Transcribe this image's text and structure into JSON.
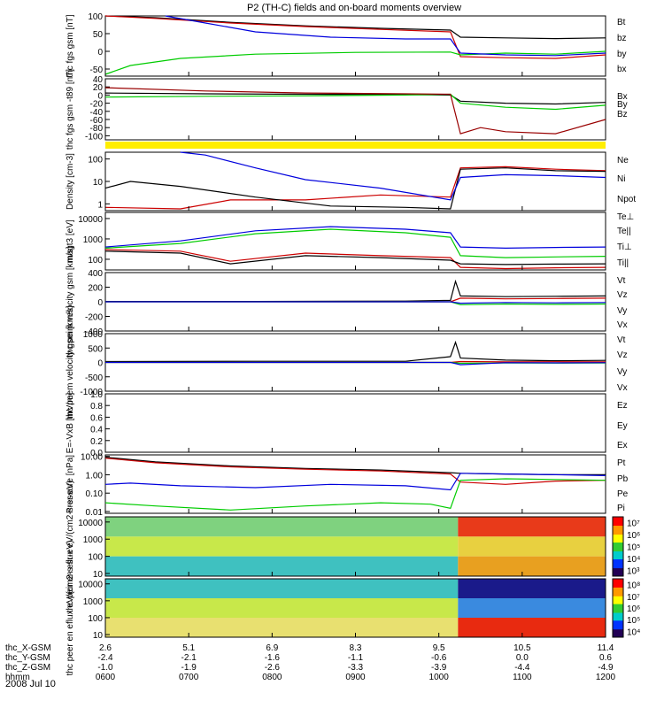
{
  "title": "P2 (TH-C) fields and on-board moments overview",
  "date_label": "2008 Jul 10",
  "chart_data": [
    {
      "type": "line",
      "ylabel": "thc fgs gsm [nT]",
      "ylim": [
        -70,
        100
      ],
      "yticks": [
        "100",
        "50",
        "0",
        "-50"
      ],
      "yvals": [
        100,
        50,
        0,
        -50
      ],
      "scale": "linear",
      "series": [
        {
          "name": "Bt",
          "color": "#000000",
          "x": [
            0,
            0.1,
            0.25,
            0.4,
            0.55,
            0.69,
            0.71,
            0.8,
            0.9,
            1.0
          ],
          "y": [
            100,
            95,
            82,
            72,
            65,
            60,
            40,
            38,
            36,
            38
          ]
        },
        {
          "name": "bz",
          "color": "#cc0000",
          "x": [
            0,
            0.1,
            0.25,
            0.4,
            0.55,
            0.69,
            0.71,
            0.8,
            0.9,
            1.0
          ],
          "y": [
            100,
            93,
            80,
            70,
            62,
            55,
            -15,
            -18,
            -20,
            -10
          ]
        },
        {
          "name": "by",
          "color": "#00cc00",
          "x": [
            0,
            0.05,
            0.15,
            0.3,
            0.5,
            0.69,
            0.71,
            0.8,
            0.9,
            1.0
          ],
          "y": [
            -65,
            -40,
            -20,
            -8,
            -3,
            -2,
            -10,
            -5,
            -8,
            0
          ]
        },
        {
          "name": "bx",
          "color": "#0000dd",
          "x": [
            0.12,
            0.2,
            0.3,
            0.45,
            0.6,
            0.69,
            0.71,
            0.8,
            0.9,
            1.0
          ],
          "y": [
            100,
            80,
            55,
            40,
            35,
            35,
            -5,
            -10,
            -12,
            -5
          ]
        }
      ]
    },
    {
      "type": "line",
      "ylabel": "thc fgs gsm -t89 [nT]",
      "ylim": [
        -110,
        40
      ],
      "yticks": [
        "40",
        "20",
        "0",
        "-20",
        "-40",
        "-60",
        "-80",
        "-100"
      ],
      "yvals": [
        40,
        20,
        0,
        -20,
        -40,
        -60,
        -80,
        -100
      ],
      "scale": "linear",
      "series": [
        {
          "name": "Bx",
          "color": "#000000",
          "x": [
            0,
            0.2,
            0.4,
            0.6,
            0.69,
            0.71,
            0.8,
            0.9,
            1.0
          ],
          "y": [
            5,
            3,
            2,
            1,
            0,
            -15,
            -20,
            -22,
            -18
          ]
        },
        {
          "name": "By",
          "color": "#00cc00",
          "x": [
            0,
            0.2,
            0.4,
            0.6,
            0.69,
            0.71,
            0.8,
            0.9,
            1.0
          ],
          "y": [
            -5,
            -3,
            -2,
            0,
            2,
            -20,
            -30,
            -35,
            -25
          ]
        },
        {
          "name": "Bz",
          "color": "#990000",
          "x": [
            0,
            0.2,
            0.4,
            0.6,
            0.69,
            0.71,
            0.75,
            0.8,
            0.9,
            1.0
          ],
          "y": [
            18,
            10,
            5,
            3,
            2,
            -95,
            -80,
            -90,
            -95,
            -60
          ]
        }
      ]
    },
    {
      "type": "line",
      "ylabel": "Density [cm-3]",
      "ylim": [
        0.5,
        200
      ],
      "yticks": [
        "100",
        "10",
        "1"
      ],
      "yvals": [
        100,
        10,
        1
      ],
      "scale": "log",
      "series": [
        {
          "name": "Ne",
          "color": "#cc0000",
          "x": [
            0,
            0.15,
            0.25,
            0.4,
            0.55,
            0.69,
            0.71,
            0.8,
            0.9,
            1.0
          ],
          "y": [
            0.7,
            0.6,
            1.5,
            1.5,
            2.5,
            2.0,
            40,
            45,
            35,
            30
          ]
        },
        {
          "name": "Ni",
          "color": "#000000",
          "x": [
            0,
            0.05,
            0.15,
            0.3,
            0.45,
            0.6,
            0.69,
            0.71,
            0.8,
            0.9,
            1.0
          ],
          "y": [
            5,
            10,
            6,
            2,
            0.8,
            0.7,
            0.6,
            35,
            40,
            30,
            28
          ]
        },
        {
          "name": "Npot",
          "color": "#0000dd",
          "x": [
            0.15,
            0.2,
            0.3,
            0.4,
            0.55,
            0.69,
            0.71,
            0.8,
            0.9,
            1.0
          ],
          "y": [
            200,
            150,
            40,
            12,
            5,
            1.5,
            15,
            20,
            18,
            15
          ]
        }
      ]
    },
    {
      "type": "line",
      "ylabel": "magt3 [eV]",
      "ylim": [
        30,
        20000
      ],
      "yticks": [
        "10000",
        "1000",
        "100"
      ],
      "yvals": [
        10000,
        1000,
        100
      ],
      "scale": "log",
      "series": [
        {
          "name": "Te⊥",
          "color": "#cc0000",
          "x": [
            0,
            0.15,
            0.25,
            0.4,
            0.55,
            0.69,
            0.71,
            0.8,
            0.9,
            1.0
          ],
          "y": [
            300,
            250,
            80,
            200,
            150,
            120,
            40,
            35,
            38,
            40
          ]
        },
        {
          "name": "Te||",
          "color": "#000000",
          "x": [
            0,
            0.15,
            0.25,
            0.4,
            0.55,
            0.69,
            0.71,
            0.8,
            0.9,
            1.0
          ],
          "y": [
            250,
            200,
            60,
            150,
            120,
            90,
            60,
            55,
            58,
            60
          ]
        },
        {
          "name": "Ti⊥",
          "color": "#0000dd",
          "x": [
            0,
            0.15,
            0.3,
            0.45,
            0.6,
            0.69,
            0.71,
            0.8,
            0.9,
            1.0
          ],
          "y": [
            400,
            800,
            2500,
            4000,
            3000,
            2000,
            400,
            350,
            380,
            400
          ]
        },
        {
          "name": "Ti||",
          "color": "#00cc00",
          "x": [
            0,
            0.15,
            0.3,
            0.45,
            0.6,
            0.69,
            0.71,
            0.8,
            0.9,
            1.0
          ],
          "y": [
            350,
            600,
            1800,
            3000,
            2000,
            1200,
            150,
            120,
            130,
            140
          ]
        }
      ]
    },
    {
      "type": "line",
      "ylabel": "thc peim velocity gsm [km/s]",
      "ylim": [
        -400,
        400
      ],
      "yticks": [
        "400",
        "200",
        "0",
        "-200",
        "-400"
      ],
      "yvals": [
        400,
        200,
        0,
        -200,
        -400
      ],
      "scale": "linear",
      "series": [
        {
          "name": "Vt",
          "color": "#000000",
          "x": [
            0,
            0.3,
            0.6,
            0.69,
            0.7,
            0.71,
            0.8,
            0.9,
            1.0
          ],
          "y": [
            5,
            5,
            10,
            20,
            280,
            80,
            70,
            75,
            80
          ]
        },
        {
          "name": "Vz",
          "color": "#cc0000",
          "x": [
            0,
            0.3,
            0.6,
            0.69,
            0.71,
            0.8,
            0.9,
            1.0
          ],
          "y": [
            0,
            0,
            0,
            0,
            50,
            40,
            45,
            50
          ]
        },
        {
          "name": "Vy",
          "color": "#00cc00",
          "x": [
            0,
            0.3,
            0.6,
            0.69,
            0.71,
            0.8,
            0.9,
            1.0
          ],
          "y": [
            0,
            0,
            0,
            0,
            -40,
            -30,
            -35,
            -30
          ]
        },
        {
          "name": "Vx",
          "color": "#0000dd",
          "x": [
            0,
            0.3,
            0.6,
            0.69,
            0.71,
            0.8,
            0.9,
            1.0
          ],
          "y": [
            0,
            0,
            0,
            0,
            -20,
            -10,
            -15,
            -10
          ]
        }
      ]
    },
    {
      "type": "line",
      "ylabel": "thc peem velocity gsm [km/s]",
      "ylim": [
        -1000,
        1000
      ],
      "yticks": [
        "1000",
        "500",
        "0",
        "-500",
        "-1000"
      ],
      "yvals": [
        1000,
        500,
        0,
        -500,
        -1000
      ],
      "scale": "linear",
      "series": [
        {
          "name": "Vt",
          "color": "#000000",
          "x": [
            0,
            0.3,
            0.6,
            0.69,
            0.7,
            0.71,
            0.8,
            0.9,
            1.0
          ],
          "y": [
            30,
            40,
            40,
            200,
            700,
            150,
            80,
            60,
            70
          ]
        },
        {
          "name": "Vz",
          "color": "#cc0000",
          "x": [
            0,
            0.3,
            0.6,
            0.69,
            0.71,
            0.8,
            0.9,
            1.0
          ],
          "y": [
            0,
            0,
            0,
            0,
            30,
            20,
            25,
            20
          ]
        },
        {
          "name": "Vy",
          "color": "#00cc00",
          "x": [
            0,
            0.3,
            0.6,
            0.69,
            0.71,
            0.8,
            0.9,
            1.0
          ],
          "y": [
            0,
            0,
            0,
            0,
            -30,
            -20,
            -25,
            -20
          ]
        },
        {
          "name": "Vx",
          "color": "#0000dd",
          "x": [
            0,
            0.3,
            0.6,
            0.69,
            0.71,
            0.8,
            0.9,
            1.0
          ],
          "y": [
            0,
            0,
            0,
            0,
            -80,
            -10,
            -15,
            -10
          ]
        }
      ]
    },
    {
      "type": "line",
      "ylabel": "E=-VxB [mV/m]",
      "ylim": [
        0,
        1
      ],
      "yticks": [
        "1.0",
        "0.8",
        "0.6",
        "0.4",
        "0.2",
        "0.0"
      ],
      "yvals": [
        1.0,
        0.8,
        0.6,
        0.4,
        0.2,
        0.0
      ],
      "scale": "linear",
      "series": [
        {
          "name": "Ez",
          "color": "#cc0000",
          "x": [],
          "y": []
        },
        {
          "name": "Ey",
          "color": "#00cc00",
          "x": [],
          "y": []
        },
        {
          "name": "Ex",
          "color": "#0000dd",
          "x": [],
          "y": []
        }
      ]
    },
    {
      "type": "line",
      "ylabel": "Pressure [nPa]",
      "ylim": [
        0.008,
        12
      ],
      "yticks": [
        "10.00",
        "1.00",
        "0.10",
        "0.01"
      ],
      "yvals": [
        10,
        1,
        0.1,
        0.01
      ],
      "scale": "log",
      "series": [
        {
          "name": "Pt",
          "color": "#000000",
          "x": [
            0,
            0.1,
            0.25,
            0.4,
            0.55,
            0.69,
            0.71,
            0.8,
            0.9,
            1.0
          ],
          "y": [
            9,
            5,
            3,
            2.2,
            1.8,
            1.3,
            1.2,
            1.1,
            1.0,
            1.0
          ]
        },
        {
          "name": "Pb",
          "color": "#cc0000",
          "x": [
            0,
            0.1,
            0.25,
            0.4,
            0.55,
            0.69,
            0.71,
            0.8,
            0.9,
            1.0
          ],
          "y": [
            8,
            4.5,
            2.7,
            2.0,
            1.6,
            1.1,
            0.4,
            0.3,
            0.45,
            0.5
          ]
        },
        {
          "name": "Pe",
          "color": "#00cc00",
          "x": [
            0,
            0.1,
            0.25,
            0.4,
            0.55,
            0.65,
            0.69,
            0.71,
            0.8,
            0.9,
            1.0
          ],
          "y": [
            0.03,
            0.02,
            0.012,
            0.02,
            0.03,
            0.025,
            0.015,
            0.5,
            0.6,
            0.55,
            0.5
          ]
        },
        {
          "name": "Pi",
          "color": "#0000dd",
          "x": [
            0,
            0.05,
            0.15,
            0.3,
            0.45,
            0.6,
            0.69,
            0.71,
            0.8,
            0.9,
            1.0
          ],
          "y": [
            0.3,
            0.35,
            0.25,
            0.2,
            0.3,
            0.25,
            0.15,
            1.2,
            1.1,
            1.0,
            0.9
          ]
        }
      ]
    },
    {
      "type": "heatmap",
      "ylabel": "thc peir en eflux eV/(cm2-s-sr-eV)",
      "scale": "log",
      "ylim": [
        7,
        20000
      ],
      "yticks": [
        "10000",
        "1000",
        "100",
        "10"
      ],
      "yvals": [
        10000,
        1000,
        100,
        10
      ],
      "colorbar_ticks": [
        "10⁷",
        "10⁶",
        "10⁵",
        "10⁴",
        "10³"
      ],
      "colorbar_range": [
        2.5,
        7.5
      ]
    },
    {
      "type": "heatmap",
      "ylabel": "thc peer en eflux eV/(cm2-s-sr-eV)",
      "scale": "log",
      "ylim": [
        7,
        20000
      ],
      "yticks": [
        "10000",
        "1000",
        "100",
        "10"
      ],
      "yvals": [
        10000,
        1000,
        100,
        10
      ],
      "colorbar_ticks": [
        "10⁸",
        "10⁷",
        "10⁶",
        "10⁵",
        "10⁴"
      ],
      "colorbar_range": [
        3.5,
        8.5
      ]
    }
  ],
  "xaxis": {
    "rows": [
      {
        "label": "thc_X-GSM",
        "values": [
          "2.6",
          "5.1",
          "6.9",
          "8.3",
          "9.5",
          "10.5",
          "11.4"
        ]
      },
      {
        "label": "thc_Y-GSM",
        "values": [
          "-2.4",
          "-2.1",
          "-1.6",
          "-1.1",
          "-0.6",
          "0.0",
          "0.6"
        ]
      },
      {
        "label": "thc_Z-GSM",
        "values": [
          "-1.0",
          "-1.9",
          "-2.6",
          "-3.3",
          "-3.9",
          "-4.4",
          "-4.9"
        ]
      },
      {
        "label": "hhmm",
        "values": [
          "0600",
          "0700",
          "0800",
          "0900",
          "1000",
          "1100",
          "1200"
        ]
      }
    ]
  }
}
